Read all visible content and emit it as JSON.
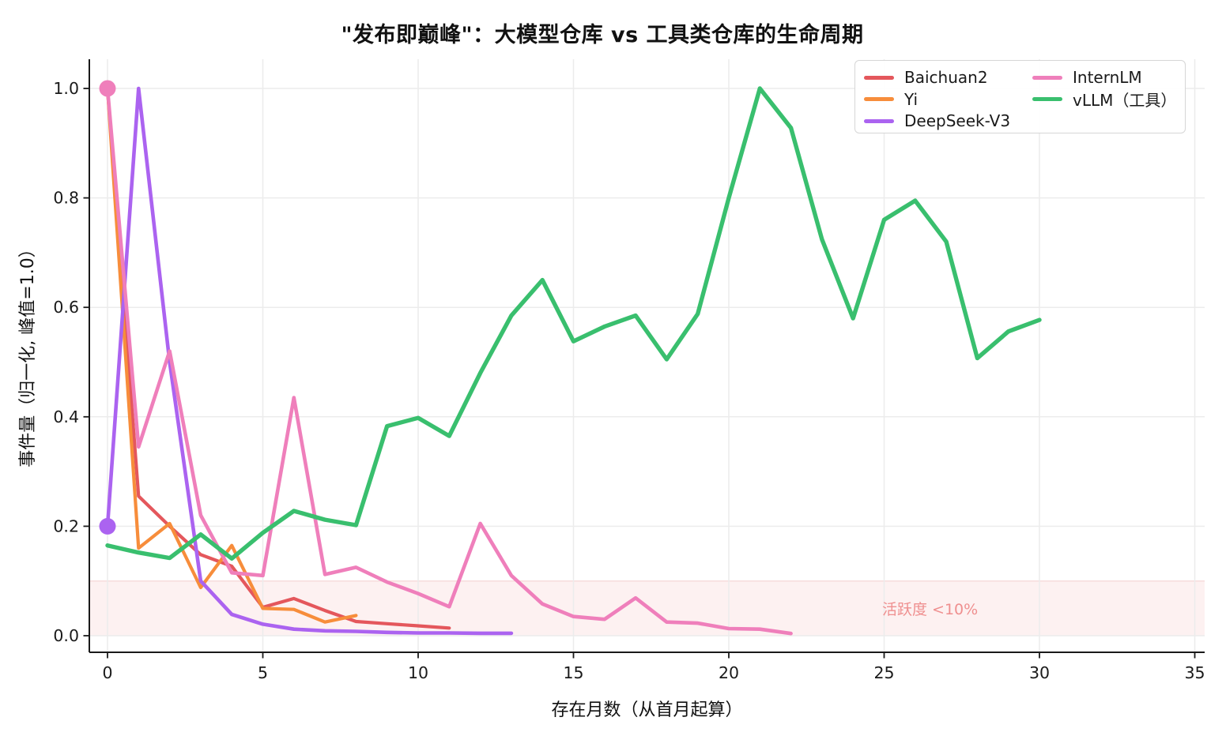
{
  "title": "\"发布即巅峰\"：大模型仓库 vs 工具类仓库的生命周期",
  "x_axis_label": "存在月数（从首月起算）",
  "y_axis_label": "事件量（归一化, 峰值=1.0）",
  "annotation": {
    "text": "活跃度 <10%",
    "color": "#ef8f8f"
  },
  "threshold_band": {
    "from": 0.0,
    "to": 0.1,
    "fill": "rgba(235,105,95,0.09)",
    "edge": "rgba(224,130,130,0.35)"
  },
  "x_ticks": [
    0,
    5,
    10,
    15,
    20,
    25,
    30,
    35
  ],
  "y_ticks": [
    "0.0",
    "0.2",
    "0.4",
    "0.6",
    "0.8",
    "1.0"
  ],
  "chart_data": {
    "type": "line",
    "title": "\"发布即巅峰\"：大模型仓库 vs 工具类仓库的生命周期",
    "xlabel": "存在月数（从首月起算）",
    "ylabel": "事件量（归一化, 峰值=1.0）",
    "xlim": [
      -0.6,
      35.3
    ],
    "ylim": [
      -0.03,
      1.055
    ],
    "grid": true,
    "legend_position": "upper right, 2 columns",
    "series": [
      {
        "name": "Baichuan2",
        "color": "#e4575c",
        "line_width": 4.2,
        "x": [
          0,
          1,
          2,
          3,
          4,
          5,
          6,
          7,
          8,
          9,
          10,
          11
        ],
        "values": [
          1.0,
          0.255,
          0.2,
          0.148,
          0.127,
          0.052,
          0.068,
          0.046,
          0.026,
          0.022,
          0.018,
          0.014
        ],
        "marker_at": []
      },
      {
        "name": "Yi",
        "color": "#f78d3b",
        "line_width": 4.2,
        "x": [
          0,
          1,
          2,
          3,
          4,
          5,
          6,
          7,
          8
        ],
        "values": [
          1.0,
          0.16,
          0.205,
          0.088,
          0.165,
          0.05,
          0.048,
          0.025,
          0.037
        ],
        "marker_at": []
      },
      {
        "name": "DeepSeek-V3",
        "color": "#ab63f0",
        "line_width": 4.6,
        "x": [
          0,
          1,
          2,
          3,
          4,
          5,
          6,
          7,
          8,
          9,
          10,
          11,
          12,
          13
        ],
        "values": [
          0.2,
          1.0,
          0.5,
          0.1,
          0.039,
          0.021,
          0.012,
          0.009,
          0.008,
          0.006,
          0.005,
          0.005,
          0.0045,
          0.0045
        ],
        "marker_at": [
          0
        ]
      },
      {
        "name": "InternLM",
        "color": "#ef7fbb",
        "line_width": 4.6,
        "x": [
          0,
          1,
          2,
          3,
          4,
          5,
          6,
          7,
          8,
          9,
          10,
          11,
          12,
          13,
          14,
          15,
          16,
          17,
          18,
          19,
          20,
          21,
          22
        ],
        "values": [
          1.0,
          0.345,
          0.52,
          0.22,
          0.115,
          0.11,
          0.435,
          0.112,
          0.125,
          0.098,
          0.077,
          0.053,
          0.205,
          0.11,
          0.058,
          0.035,
          0.03,
          0.069,
          0.025,
          0.023,
          0.013,
          0.012,
          0.004
        ],
        "marker_at": [
          0
        ]
      },
      {
        "name": "vLLM（工具）",
        "color": "#39bf6e",
        "line_width": 5.4,
        "x": [
          0,
          1,
          2,
          3,
          4,
          5,
          6,
          7,
          8,
          9,
          10,
          11,
          12,
          13,
          14,
          15,
          16,
          17,
          18,
          19,
          20,
          21,
          22,
          23,
          24,
          25,
          26,
          27,
          28,
          29,
          30
        ],
        "values": [
          0.165,
          0.152,
          0.142,
          0.185,
          0.141,
          0.188,
          0.228,
          0.212,
          0.202,
          0.383,
          0.398,
          0.365,
          0.48,
          0.585,
          0.65,
          0.538,
          0.565,
          0.585,
          0.505,
          0.588,
          0.8,
          1.0,
          0.928,
          0.724,
          0.58,
          0.76,
          0.795,
          0.72,
          0.507,
          0.556,
          0.577
        ],
        "marker_at": []
      }
    ]
  },
  "legend": {
    "columns": [
      [
        0,
        1,
        2
      ],
      [
        3,
        4
      ]
    ]
  }
}
